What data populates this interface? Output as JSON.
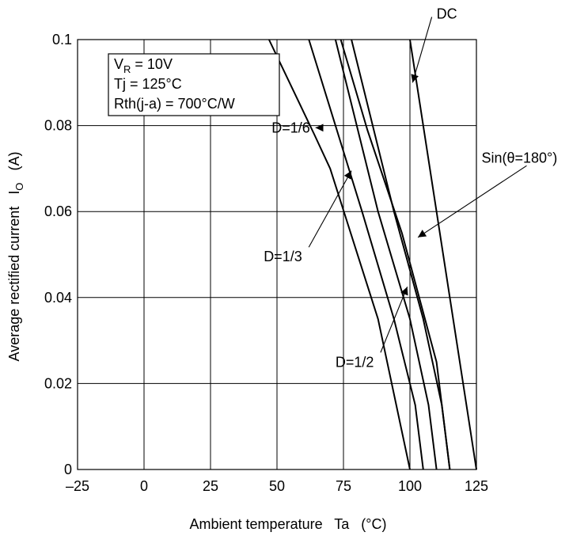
{
  "chart_data": {
    "type": "line",
    "title": "",
    "xlabel": "Ambient temperature   Ta   (°C)",
    "ylabel": "Average rectified current   I",
    "ylabel_sub": "O",
    "ylabel_unit": "(A)",
    "xlim": [
      -25,
      125
    ],
    "ylim": [
      0,
      0.1
    ],
    "x_ticks": [
      -25,
      0,
      25,
      50,
      75,
      100,
      125
    ],
    "x_tick_labels": [
      "–25",
      "0",
      "25",
      "50",
      "75",
      "100",
      "125"
    ],
    "y_ticks": [
      0,
      0.02,
      0.04,
      0.06,
      0.08,
      0.1
    ],
    "y_tick_labels": [
      "0",
      "0.02",
      "0.04",
      "0.06",
      "0.08",
      "0.1"
    ],
    "grid": true,
    "conditions": {
      "line1_main": "V",
      "line1_sub": "R",
      "line1_rest": " = 10V",
      "line2": "Tj = 125°C",
      "line3": "Rth(j-a) = 700°C/W"
    },
    "series": [
      {
        "name": "D=1/6",
        "x": [
          47,
          64,
          70,
          88,
          100
        ],
        "y": [
          0.1,
          0.078,
          0.07,
          0.035,
          0
        ]
      },
      {
        "name": "D=1/3",
        "x": [
          62,
          82,
          94,
          102,
          105
        ],
        "y": [
          0.1,
          0.06,
          0.035,
          0.015,
          0
        ]
      },
      {
        "name": "D=1/2",
        "x": [
          72,
          88,
          100,
          107,
          110
        ],
        "y": [
          0.1,
          0.06,
          0.035,
          0.015,
          0
        ]
      },
      {
        "name": "",
        "x": [
          78,
          94,
          105,
          112,
          115
        ],
        "y": [
          0.1,
          0.06,
          0.035,
          0.015,
          0
        ]
      },
      {
        "name": "Sin(θ=180°)",
        "x": [
          74,
          84,
          97,
          110,
          115
        ],
        "y": [
          0.1,
          0.079,
          0.055,
          0.025,
          0
        ]
      },
      {
        "name": "DC",
        "x": [
          100,
          125
        ],
        "y": [
          0.1,
          0
        ]
      }
    ],
    "annotations": [
      {
        "text": "DC",
        "tx": 110,
        "ty": 0.106,
        "ax": 101,
        "ay": 0.09
      },
      {
        "text": "D=1/6",
        "tx": 48,
        "ty": 0.0795,
        "ax": 64.5,
        "ay": 0.0795
      },
      {
        "text": "Sin(θ=180°)",
        "tx": 129,
        "ty": 0.0725,
        "ax": 103,
        "ay": 0.054
      },
      {
        "text": "D=1/3",
        "tx": 45,
        "ty": 0.0495,
        "ax": 78,
        "ay": 0.0695
      },
      {
        "text": "D=1/2",
        "tx": 72,
        "ty": 0.025,
        "ax": 99,
        "ay": 0.0425
      }
    ]
  }
}
